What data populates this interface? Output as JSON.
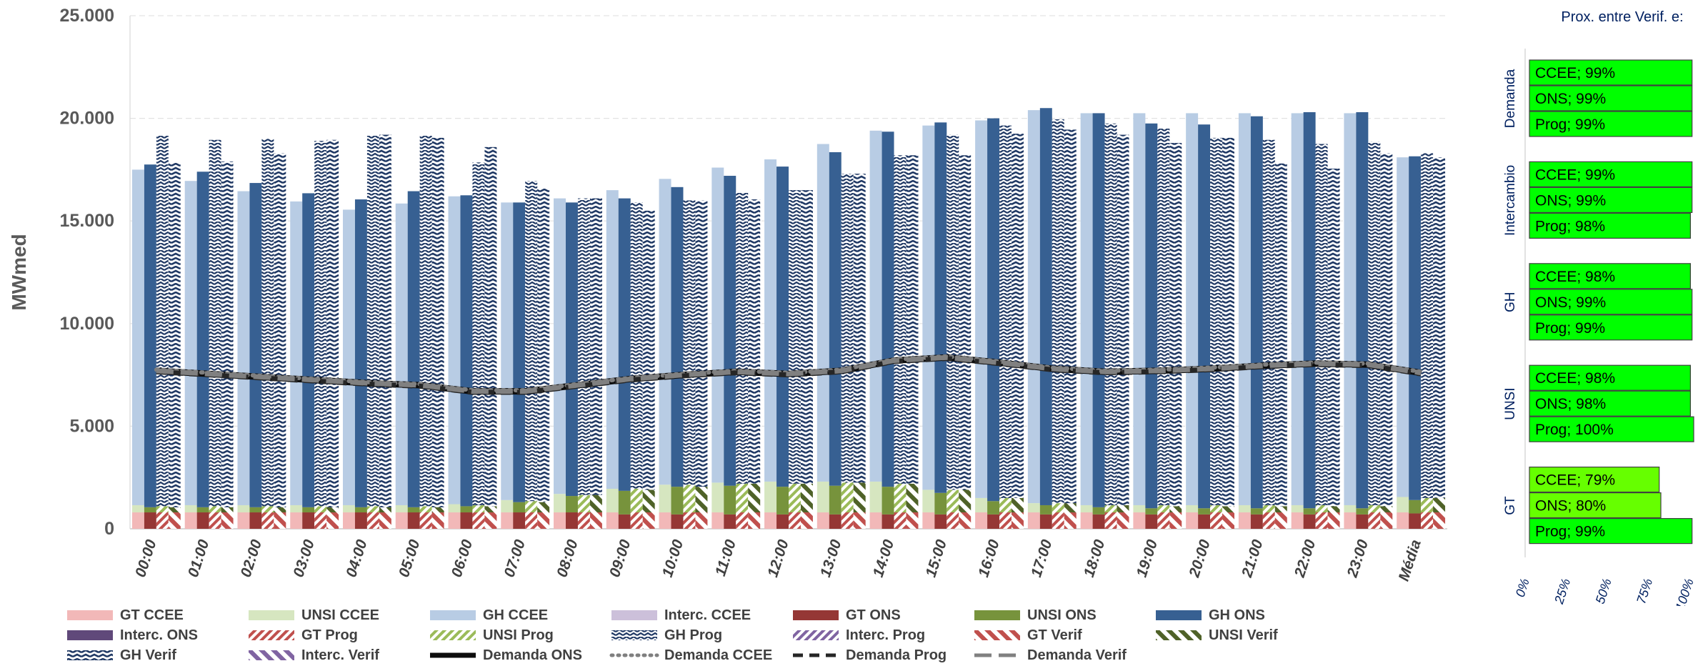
{
  "chart_data": [
    {
      "type": "bar",
      "title": "",
      "xlabel": "",
      "ylabel": "MWmed",
      "ylim": [
        0,
        25000
      ],
      "yticks": [
        "0",
        "5.000",
        "10.000",
        "15.000",
        "20.000",
        "25.000"
      ],
      "categories": [
        "00:00",
        "01:00",
        "02:00",
        "03:00",
        "04:00",
        "05:00",
        "06:00",
        "07:00",
        "08:00",
        "09:00",
        "10:00",
        "11:00",
        "12:00",
        "13:00",
        "14:00",
        "15:00",
        "16:00",
        "17:00",
        "18:00",
        "19:00",
        "20:00",
        "21:00",
        "22:00",
        "23:00",
        "Média"
      ],
      "grid": true,
      "legend_position": "bottom",
      "stack_groups": [
        "CCEE",
        "ONS",
        "Prog",
        "Verif"
      ],
      "series": [
        {
          "name": "GT CCEE",
          "group": "CCEE",
          "color": "#f2b8b8",
          "pattern": "solid",
          "values": [
            800,
            800,
            800,
            800,
            800,
            800,
            800,
            800,
            800,
            800,
            800,
            800,
            800,
            800,
            800,
            800,
            800,
            800,
            800,
            800,
            800,
            800,
            800,
            800,
            800
          ]
        },
        {
          "name": "UNSI CCEE",
          "group": "CCEE",
          "color": "#d6e6c0",
          "pattern": "solid",
          "values": [
            350,
            350,
            350,
            350,
            350,
            350,
            400,
            600,
            900,
            1150,
            1350,
            1450,
            1500,
            1500,
            1500,
            1100,
            700,
            450,
            350,
            350,
            350,
            350,
            350,
            350,
            750
          ]
        },
        {
          "name": "GH CCEE",
          "group": "CCEE",
          "color": "#b8cce4",
          "pattern": "solid",
          "values": [
            16350,
            15800,
            15300,
            14800,
            14400,
            14700,
            15000,
            14500,
            14400,
            14550,
            14900,
            15350,
            15700,
            16450,
            17100,
            17750,
            18400,
            19150,
            19100,
            19100,
            19100,
            19100,
            19100,
            19100,
            16550
          ]
        },
        {
          "name": "Interc. CCEE",
          "group": "CCEE",
          "color": "#ccc0da",
          "pattern": "solid",
          "values": [
            0,
            0,
            0,
            0,
            0,
            0,
            0,
            0,
            0,
            0,
            0,
            0,
            0,
            0,
            0,
            0,
            0,
            0,
            0,
            0,
            0,
            0,
            0,
            0,
            0
          ]
        },
        {
          "name": "GT ONS",
          "group": "ONS",
          "color": "#953735",
          "pattern": "solid",
          "values": [
            800,
            800,
            800,
            800,
            800,
            800,
            800,
            800,
            800,
            700,
            700,
            700,
            700,
            700,
            700,
            700,
            700,
            700,
            700,
            700,
            700,
            700,
            700,
            700,
            750
          ]
        },
        {
          "name": "UNSI ONS",
          "group": "ONS",
          "color": "#77933c",
          "pattern": "solid",
          "values": [
            250,
            250,
            250,
            250,
            250,
            250,
            300,
            500,
            800,
            1150,
            1350,
            1400,
            1350,
            1400,
            1350,
            1050,
            650,
            450,
            350,
            300,
            300,
            300,
            300,
            300,
            650
          ]
        },
        {
          "name": "GH ONS",
          "group": "ONS",
          "color": "#376092",
          "pattern": "solid",
          "values": [
            16700,
            16350,
            15800,
            15300,
            15000,
            15400,
            15150,
            14600,
            14300,
            14250,
            14600,
            15100,
            15600,
            16250,
            17300,
            18050,
            18650,
            19350,
            19200,
            18750,
            18700,
            19100,
            19300,
            19300,
            16750
          ]
        },
        {
          "name": "Interc. ONS",
          "group": "ONS",
          "color": "#60497a",
          "pattern": "solid",
          "values": [
            0,
            0,
            0,
            0,
            0,
            0,
            0,
            0,
            0,
            0,
            0,
            0,
            0,
            0,
            0,
            0,
            0,
            0,
            0,
            0,
            0,
            0,
            0,
            0,
            0
          ]
        },
        {
          "name": "GT Prog",
          "group": "Prog",
          "color": "#c0504d",
          "pattern": "dense",
          "values": [
            800,
            800,
            800,
            800,
            800,
            800,
            800,
            800,
            800,
            800,
            800,
            800,
            800,
            800,
            800,
            800,
            800,
            800,
            800,
            800,
            800,
            800,
            800,
            800,
            800
          ]
        },
        {
          "name": "UNSI Prog",
          "group": "Prog",
          "color": "#9bbb59",
          "pattern": "dense",
          "values": [
            300,
            300,
            300,
            300,
            300,
            300,
            350,
            550,
            850,
            1150,
            1350,
            1400,
            1400,
            1450,
            1400,
            1100,
            700,
            450,
            350,
            350,
            350,
            350,
            350,
            350,
            700
          ]
        },
        {
          "name": "GH Prog",
          "group": "Prog",
          "color": "#1f3864",
          "pattern": "zigzag",
          "values": [
            18050,
            17850,
            17900,
            17800,
            18050,
            18050,
            16700,
            15600,
            14450,
            13950,
            13850,
            14200,
            14300,
            15050,
            16000,
            17300,
            18150,
            18700,
            18600,
            18350,
            17900,
            17800,
            17600,
            17700,
            16800
          ]
        },
        {
          "name": "Interc. Prog",
          "group": "Prog",
          "color": "#8064a2",
          "pattern": "dense",
          "values": [
            0,
            0,
            0,
            0,
            0,
            0,
            0,
            0,
            0,
            0,
            0,
            0,
            0,
            0,
            0,
            0,
            0,
            0,
            0,
            0,
            0,
            0,
            0,
            0,
            0
          ]
        },
        {
          "name": "GT Verif",
          "group": "Verif",
          "color": "#c0504d",
          "pattern": "wide",
          "values": [
            800,
            800,
            800,
            800,
            800,
            800,
            800,
            800,
            800,
            800,
            800,
            800,
            800,
            800,
            800,
            800,
            800,
            800,
            800,
            800,
            800,
            800,
            800,
            800,
            800
          ]
        },
        {
          "name": "UNSI Verif",
          "group": "Verif",
          "color": "#4f6228",
          "pattern": "wide",
          "values": [
            250,
            250,
            250,
            250,
            250,
            250,
            300,
            500,
            850,
            1100,
            1250,
            1400,
            1400,
            1450,
            1400,
            1100,
            700,
            450,
            350,
            300,
            300,
            300,
            300,
            300,
            700
          ]
        },
        {
          "name": "GH Verif",
          "group": "Verif",
          "color": "#1f3864",
          "pattern": "wide",
          "values": [
            16800,
            16850,
            17250,
            17900,
            18150,
            18000,
            17500,
            15300,
            14450,
            13600,
            13950,
            13850,
            14300,
            15050,
            16000,
            16300,
            17750,
            18200,
            18050,
            17700,
            17950,
            16700,
            16450,
            17200,
            16600
          ]
        },
        {
          "name": "Interc. Verif",
          "group": "Verif",
          "color": "#8064a2",
          "pattern": "wide",
          "values": [
            0,
            0,
            0,
            0,
            0,
            0,
            0,
            0,
            0,
            0,
            0,
            0,
            0,
            0,
            0,
            0,
            0,
            0,
            0,
            0,
            0,
            0,
            0,
            0,
            0
          ]
        }
      ],
      "lines": [
        {
          "name": "Demanda ONS",
          "style": "solid",
          "color": "#0d0d0d",
          "values": [
            7700,
            7550,
            7400,
            7250,
            7100,
            7000,
            6700,
            6700,
            7000,
            7300,
            7500,
            7650,
            7550,
            7700,
            8200,
            8350,
            8100,
            7800,
            7650,
            7700,
            7800,
            7950,
            8050,
            8000,
            7600
          ]
        },
        {
          "name": "Demanda CCEE",
          "style": "dotted",
          "color": "#7f7f7f",
          "values": [
            7750,
            7600,
            7450,
            7300,
            7150,
            7050,
            6750,
            6750,
            7050,
            7350,
            7550,
            7700,
            7600,
            7750,
            8250,
            8400,
            8150,
            7850,
            7700,
            7750,
            7850,
            8000,
            8100,
            8050,
            7650
          ]
        },
        {
          "name": "Demanda Prog",
          "style": "dashed",
          "color": "#262626",
          "values": [
            7650,
            7500,
            7350,
            7200,
            7050,
            6950,
            6650,
            6650,
            6950,
            7250,
            7450,
            7600,
            7500,
            7650,
            8150,
            8300,
            8050,
            7750,
            7600,
            7650,
            7750,
            7900,
            8000,
            7950,
            7550
          ]
        },
        {
          "name": "Demanda Verif",
          "style": "longdash",
          "color": "#808080",
          "values": [
            7700,
            7550,
            7400,
            7250,
            7100,
            7000,
            6700,
            6700,
            7000,
            7300,
            7500,
            7650,
            7550,
            7700,
            8200,
            8350,
            8100,
            7800,
            7650,
            7700,
            7800,
            7950,
            8050,
            8000,
            7600
          ]
        }
      ]
    },
    {
      "type": "bar",
      "orientation": "horizontal",
      "title": "Prox. entre Verif. e:",
      "xlim": [
        0,
        100
      ],
      "xticks": [
        "0%",
        "25%",
        "50%",
        "75%",
        "100%"
      ],
      "groups": [
        {
          "name": "Demanda",
          "bars": [
            {
              "label": "CCEE; 99%",
              "value": 99
            },
            {
              "label": "ONS; 99%",
              "value": 99
            },
            {
              "label": "Prog; 99%",
              "value": 99
            }
          ]
        },
        {
          "name": "Intercambio",
          "bars": [
            {
              "label": "CCEE; 99%",
              "value": 99
            },
            {
              "label": "ONS; 99%",
              "value": 99
            },
            {
              "label": "Prog; 98%",
              "value": 98
            }
          ]
        },
        {
          "name": "GH",
          "bars": [
            {
              "label": "CCEE; 98%",
              "value": 98
            },
            {
              "label": "ONS; 99%",
              "value": 99
            },
            {
              "label": "Prog; 99%",
              "value": 99
            }
          ]
        },
        {
          "name": "UNSI",
          "bars": [
            {
              "label": "CCEE; 98%",
              "value": 98
            },
            {
              "label": "ONS; 98%",
              "value": 98
            },
            {
              "label": "Prog; 100%",
              "value": 100
            }
          ]
        },
        {
          "name": "GT",
          "bars": [
            {
              "label": "CCEE; 79%",
              "value": 79
            },
            {
              "label": "ONS; 80%",
              "value": 80
            },
            {
              "label": "Prog; 99%",
              "value": 99
            }
          ]
        }
      ],
      "colors": {
        "high": "#00ff00",
        "mid": "#66ff00",
        "label_text": "#000000",
        "axis_text": "#002060"
      }
    }
  ]
}
